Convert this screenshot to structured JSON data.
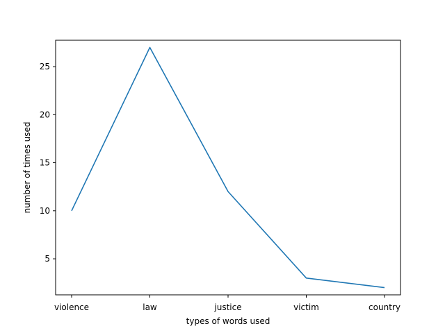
{
  "chart_data": {
    "type": "line",
    "categories": [
      "violence",
      "law",
      "justice",
      "victim",
      "country"
    ],
    "series": [
      {
        "values": [
          10,
          27,
          12,
          3,
          2
        ],
        "color": "#1f77b4"
      }
    ],
    "title": "",
    "xlabel": "types of words used",
    "ylabel": "number of times used",
    "ylim": [
      1.25,
      27.75
    ],
    "yticks": [
      5,
      10,
      15,
      20,
      25
    ],
    "grid": false
  }
}
